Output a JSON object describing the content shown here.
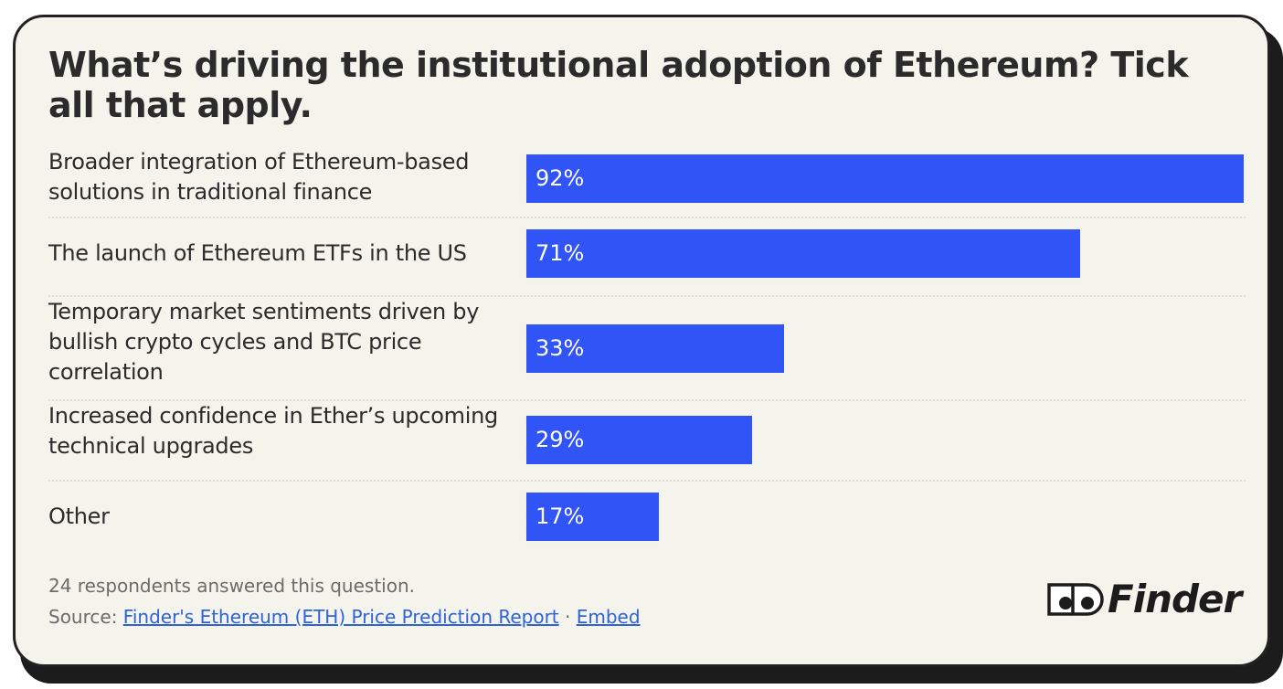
{
  "chart_data": {
    "type": "bar",
    "orientation": "horizontal",
    "title": "What’s driving the institutional adoption of Ethereum? Tick all that apply.",
    "categories": [
      "Broader integration of Ethereum-based solutions in traditional finance",
      "The launch of Ethereum ETFs in the US",
      "Temporary market sentiments driven by bullish crypto cycles and BTC price correlation",
      "Increased confidence in Ether’s upcoming technical upgrades",
      "Other"
    ],
    "values": [
      92,
      71,
      33,
      29,
      17
    ],
    "value_labels": [
      "92%",
      "71%",
      "33%",
      "29%",
      "17%"
    ],
    "unit": "%",
    "xlim": [
      0,
      100
    ],
    "bar_color": "#3054f5",
    "grid": false
  },
  "footer": {
    "note": "24 respondents answered this question.",
    "source_prefix": "Source:",
    "source_link": "Finder's Ethereum (ETH) Price Prediction Report",
    "separator": "·",
    "embed_link": "Embed"
  },
  "logo": {
    "text": "Finder",
    "icon": "eyes-icon"
  }
}
